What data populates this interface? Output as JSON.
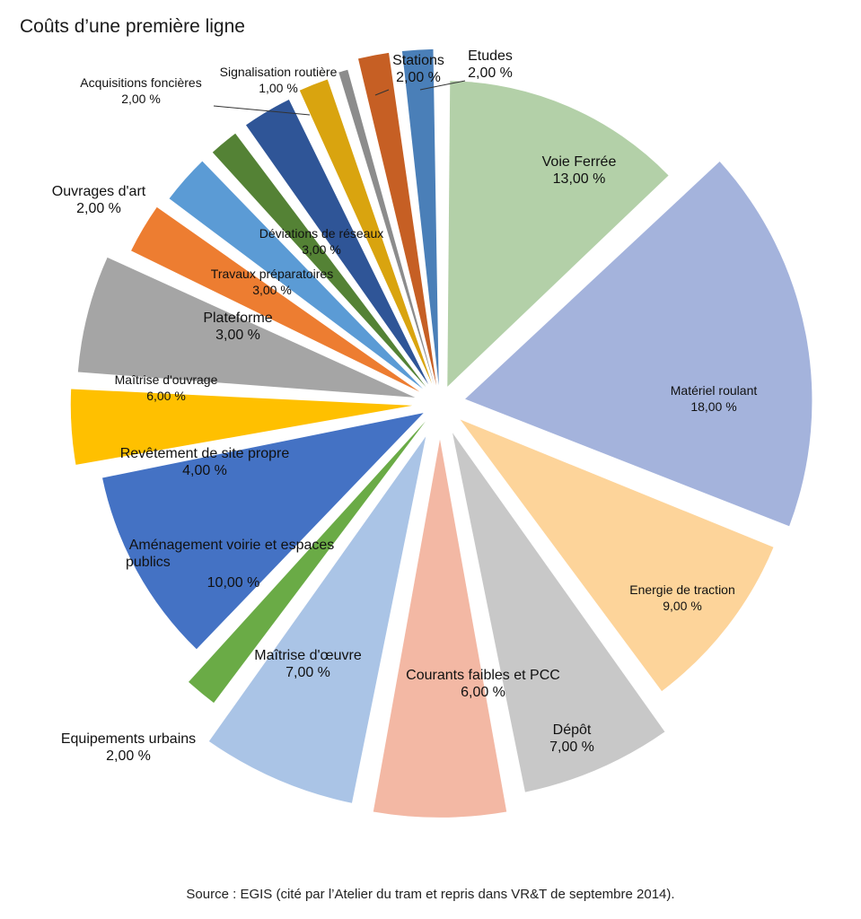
{
  "chart_data": {
    "type": "pie",
    "title": "Coûts d’une première ligne",
    "unit": "%",
    "slices": [
      {
        "label": "Voie Ferrée",
        "value": 13,
        "value_label": "13,00 %",
        "color": "#b3d0a8"
      },
      {
        "label": "Matériel roulant",
        "value": 18,
        "value_label": "18,00 %",
        "color": "#a4b3dc"
      },
      {
        "label": "Energie de traction",
        "value": 9,
        "value_label": "9,00 %",
        "color": "#fdd49a"
      },
      {
        "label": "Dépôt",
        "value": 7,
        "value_label": "7,00 %",
        "color": "#c8c8c8"
      },
      {
        "label": "Courants faibles et PCC",
        "value": 6,
        "value_label": "6,00 %",
        "color": "#f3b8a4"
      },
      {
        "label": "Maîtrise d'œuvre",
        "value": 7,
        "value_label": "7,00 %",
        "color": "#aac4e6"
      },
      {
        "label": "Equipements urbains",
        "value": 2,
        "value_label": "2,00 %",
        "color": "#6aab46"
      },
      {
        "label": "Aménagement voirie et espaces publics",
        "value": 10,
        "value_label": "10,00 %",
        "color": "#4472c4"
      },
      {
        "label": "Revêtement de site propre",
        "value": 4,
        "value_label": "4,00 %",
        "color": "#ffc000"
      },
      {
        "label": "Maîtrise d'ouvrage",
        "value": 6,
        "value_label": "6,00 %",
        "color": "#a5a5a5"
      },
      {
        "label": "Plateforme",
        "value": 3,
        "value_label": "3,00 %",
        "color": "#ed7d31"
      },
      {
        "label": "Travaux préparatoires",
        "value": 3,
        "value_label": "3,00 %",
        "color": "#5b9bd5"
      },
      {
        "label": "Ouvrages d'art",
        "value": 2,
        "value_label": "2,00 %",
        "color": "#548235"
      },
      {
        "label": "Déviations de réseaux",
        "value": 3,
        "value_label": "3,00 %",
        "color": "#2f5597"
      },
      {
        "label": "Acquisitions foncières",
        "value": 2,
        "value_label": "2,00 %",
        "color": "#d9a40f"
      },
      {
        "label": "Signalisation routière",
        "value": 1,
        "value_label": "1,00 %",
        "color": "#8c8c8c"
      },
      {
        "label": "Stations",
        "value": 2,
        "value_label": "2,00 %",
        "color": "#c65f24"
      },
      {
        "label": "Etudes",
        "value": 2,
        "value_label": "2,00 %",
        "color": "#4a7fb8"
      }
    ]
  },
  "footer": {
    "source": "Source : EGIS (cité par l’Atelier du tram et repris dans VR&T de septembre 2014)."
  }
}
